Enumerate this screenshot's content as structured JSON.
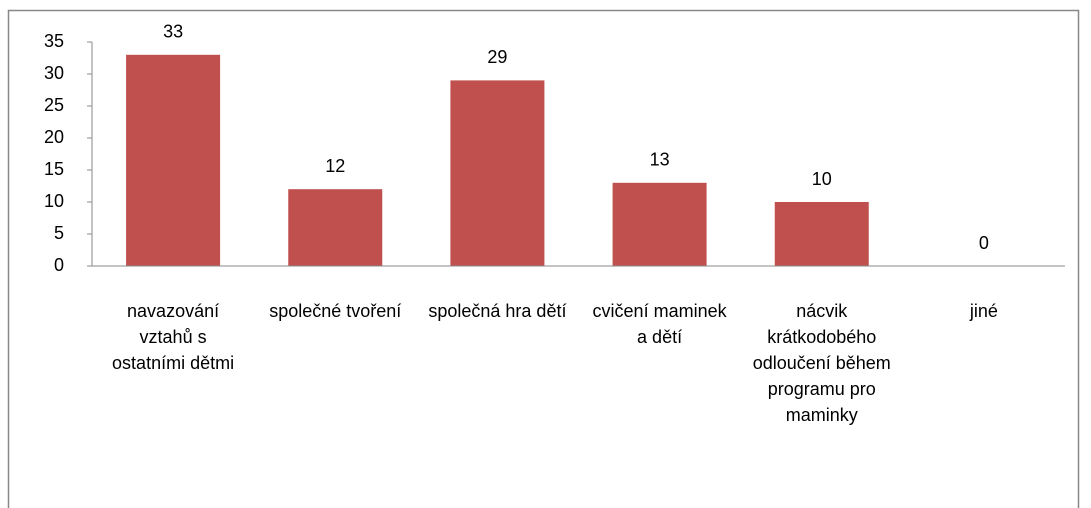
{
  "chart_data": {
    "type": "bar",
    "categories": [
      "navazování vztahů s ostatními dětmi",
      "společné tvoření",
      "společná hra dětí",
      "cvičení maminek a dětí",
      "nácvik krátkodobého odloučení během programu pro maminky",
      "jiné"
    ],
    "values": [
      33,
      12,
      29,
      13,
      10,
      0
    ],
    "color": "#c0504d",
    "ylim": [
      0,
      35
    ],
    "yticks": [
      0,
      5,
      10,
      15,
      20,
      25,
      30,
      35
    ],
    "grid": false
  }
}
